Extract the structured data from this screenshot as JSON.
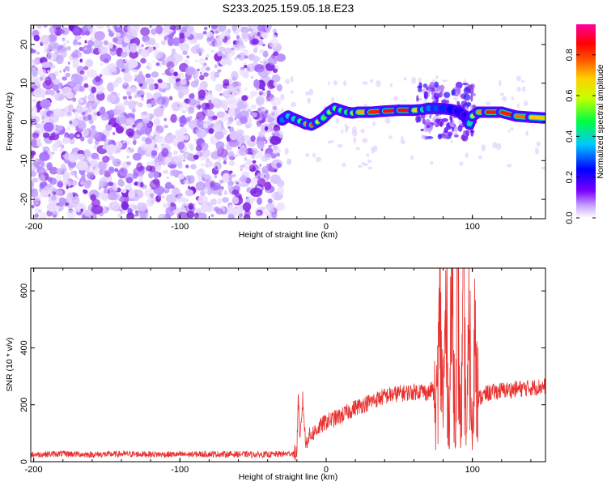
{
  "title": "S233.2025.159.05.18.E23",
  "colors": {
    "snr_line": "#e8312f",
    "speckle": "#8a2be2"
  },
  "chart_data": [
    {
      "type": "heatmap",
      "xlabel": "Height of straight line (km)",
      "ylabel": "Frequency (Hz)",
      "xlim": [
        -202,
        150
      ],
      "ylim": [
        -25,
        25
      ],
      "xticks": [
        -200,
        -100,
        0,
        100
      ],
      "xtick_labels": [
        "-200",
        "-100",
        "0",
        "100"
      ],
      "yticks": [
        -20,
        -10,
        0,
        10,
        20
      ],
      "ytick_labels": [
        "-20",
        "-10",
        "0",
        "10",
        "20"
      ],
      "noise_region_x": [
        -202,
        -31
      ],
      "signal_track": {
        "x": [
          -30,
          -26,
          -22,
          -18,
          -14,
          -10,
          -6,
          -2,
          2,
          6,
          10,
          14,
          18,
          22,
          30,
          40,
          50,
          60,
          66,
          70,
          75,
          80,
          85,
          90,
          95,
          98,
          100,
          104,
          110,
          120,
          130,
          140,
          150
        ],
        "frequency_hz": [
          0.5,
          1.5,
          0.8,
          0.2,
          -0.5,
          -0.8,
          0.0,
          1.0,
          2.5,
          3.5,
          3.0,
          2.5,
          2.3,
          2.5,
          2.5,
          2.8,
          3.0,
          3.0,
          3.2,
          3.5,
          3.5,
          3.4,
          3.2,
          2.8,
          1.5,
          -0.5,
          1.5,
          2.5,
          2.5,
          2.5,
          1.5,
          1.2,
          1.0
        ],
        "amplitude": [
          0.3,
          0.35,
          0.4,
          0.45,
          0.6,
          0.95,
          0.7,
          0.5,
          0.55,
          0.6,
          0.55,
          0.5,
          0.55,
          0.65,
          0.85,
          0.9,
          0.95,
          0.9,
          0.5,
          0.35,
          0.3,
          0.3,
          0.25,
          0.25,
          0.2,
          0.25,
          0.6,
          0.7,
          0.85,
          0.9,
          0.85,
          0.75,
          0.7
        ]
      },
      "colorbar": {
        "label": "Normalized spectral amplitude",
        "range": [
          0.0,
          0.95
        ],
        "ticks": [
          0.0,
          0.2,
          0.4,
          0.6,
          0.8
        ],
        "tick_labels": [
          "0.0",
          "0.2",
          "0.4",
          "0.6",
          "0.8"
        ],
        "colormap": "rainbow (white→violet→blue→cyan→green→yellow→orange→red→magenta)"
      }
    },
    {
      "type": "line",
      "xlabel": "Height of straight line (km)",
      "ylabel": "SNR (10 * v/v)",
      "xlim": [
        -202,
        150
      ],
      "ylim": [
        0,
        680
      ],
      "xticks": [
        -200,
        -100,
        0,
        100
      ],
      "xtick_labels": [
        "-200",
        "-100",
        "0",
        "100"
      ],
      "yticks": [
        0,
        200,
        400,
        600
      ],
      "ytick_labels": [
        "0",
        "200",
        "400",
        "600"
      ],
      "series": [
        {
          "x": [
            -202,
            -180,
            -160,
            -140,
            -120,
            -100,
            -80,
            -60,
            -40,
            -30,
            -20,
            -19,
            -18,
            -16,
            -14,
            -12,
            -10,
            -5,
            0,
            10,
            20,
            30,
            40,
            50,
            60,
            65,
            70,
            73,
            75,
            78,
            80,
            82,
            84,
            86,
            88,
            90,
            92,
            94,
            96,
            98,
            100,
            102,
            104,
            110,
            120,
            130,
            140,
            150
          ],
          "values": [
            25,
            28,
            25,
            27,
            26,
            25,
            27,
            26,
            25,
            27,
            30,
            250,
            60,
            220,
            60,
            90,
            95,
            120,
            140,
            160,
            190,
            210,
            230,
            240,
            245,
            250,
            240,
            260,
            150,
            480,
            200,
            520,
            120,
            680,
            150,
            550,
            100,
            530,
            90,
            480,
            40,
            560,
            220,
            240,
            250,
            255,
            260,
            265
          ]
        }
      ]
    }
  ]
}
